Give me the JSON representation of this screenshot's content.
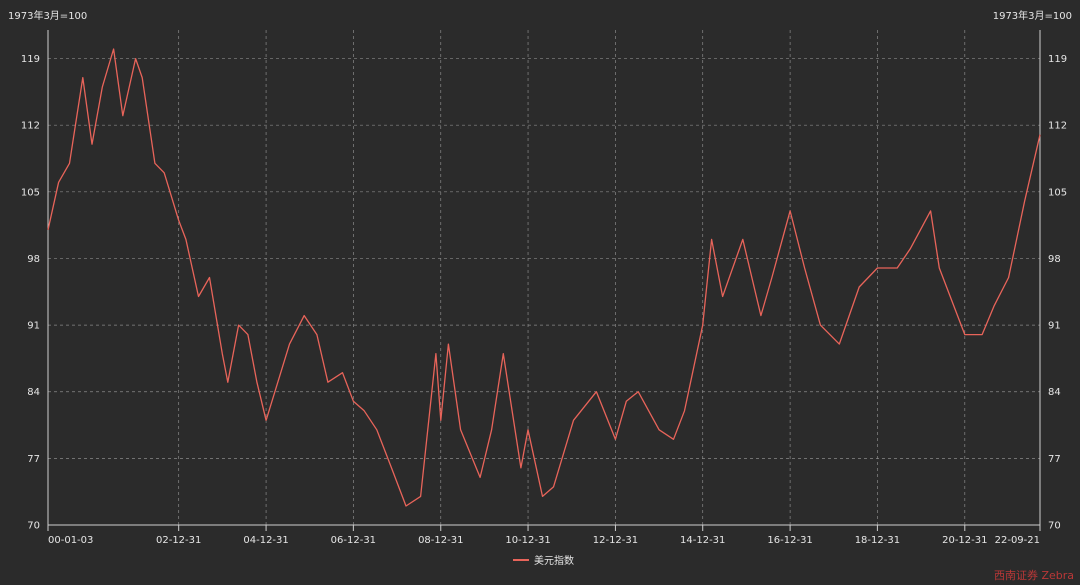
{
  "colors": {
    "background": "#2b2b2b",
    "line": "#e8645a",
    "grid": "#8a8a8a",
    "axis": "#cfcfcf",
    "text": "#e6e6e6"
  },
  "watermark": "西南证券 Zebra",
  "chart_data": {
    "type": "line",
    "unit_label_left": "1973年3月=100",
    "unit_label_right": "1973年3月=100",
    "x_tick_labels": [
      "00-01-03",
      "02-12-31",
      "04-12-31",
      "06-12-31",
      "08-12-31",
      "10-12-31",
      "12-12-31",
      "14-12-31",
      "16-12-31",
      "18-12-31",
      "20-12-31",
      "22-09-21"
    ],
    "x_ticks": [
      "2000-01-03",
      "2002-12-31",
      "2004-12-31",
      "2006-12-31",
      "2008-12-31",
      "2010-12-31",
      "2012-12-31",
      "2014-12-31",
      "2016-12-31",
      "2018-12-31",
      "2020-12-31",
      "2022-09-21"
    ],
    "ylim": [
      70,
      122
    ],
    "y_ticks": [
      70,
      77,
      84,
      91,
      98,
      105,
      112,
      119
    ],
    "grid": true,
    "legend_position": "bottom-center",
    "series": [
      {
        "name": "美元指数",
        "points": [
          [
            "2000-01-03",
            101
          ],
          [
            "2000-04-01",
            106
          ],
          [
            "2000-07-01",
            108
          ],
          [
            "2000-10-20",
            117
          ],
          [
            "2001-01-05",
            110
          ],
          [
            "2001-04-01",
            116
          ],
          [
            "2001-07-05",
            120
          ],
          [
            "2001-09-20",
            113
          ],
          [
            "2002-01-05",
            119
          ],
          [
            "2002-03-01",
            117
          ],
          [
            "2002-06-15",
            108
          ],
          [
            "2002-09-01",
            107
          ],
          [
            "2002-12-31",
            102
          ],
          [
            "2003-03-01",
            100
          ],
          [
            "2003-06-15",
            94
          ],
          [
            "2003-09-15",
            96
          ],
          [
            "2003-12-31",
            88
          ],
          [
            "2004-02-15",
            85
          ],
          [
            "2004-05-15",
            91
          ],
          [
            "2004-08-01",
            90
          ],
          [
            "2004-10-15",
            85
          ],
          [
            "2004-12-31",
            81
          ],
          [
            "2005-03-15",
            84
          ],
          [
            "2005-07-15",
            89
          ],
          [
            "2005-11-15",
            92
          ],
          [
            "2006-03-01",
            90
          ],
          [
            "2006-06-01",
            85
          ],
          [
            "2006-10-01",
            86
          ],
          [
            "2006-12-31",
            83
          ],
          [
            "2007-04-01",
            82
          ],
          [
            "2007-07-15",
            80
          ],
          [
            "2007-11-15",
            76
          ],
          [
            "2008-03-15",
            72
          ],
          [
            "2008-07-15",
            73
          ],
          [
            "2008-11-20",
            88
          ],
          [
            "2008-12-31",
            81
          ],
          [
            "2009-03-05",
            89
          ],
          [
            "2009-06-15",
            80
          ],
          [
            "2009-11-25",
            75
          ],
          [
            "2010-03-01",
            80
          ],
          [
            "2010-06-07",
            88
          ],
          [
            "2010-11-01",
            76
          ],
          [
            "2010-12-31",
            80
          ],
          [
            "2011-05-01",
            73
          ],
          [
            "2011-08-01",
            74
          ],
          [
            "2012-01-15",
            81
          ],
          [
            "2012-07-25",
            84
          ],
          [
            "2012-12-31",
            79
          ],
          [
            "2013-04-01",
            83
          ],
          [
            "2013-07-09",
            84
          ],
          [
            "2013-12-31",
            80
          ],
          [
            "2014-05-01",
            79
          ],
          [
            "2014-08-01",
            82
          ],
          [
            "2014-12-31",
            91
          ],
          [
            "2015-03-15",
            100
          ],
          [
            "2015-06-15",
            94
          ],
          [
            "2015-12-01",
            100
          ],
          [
            "2016-05-01",
            92
          ],
          [
            "2016-08-01",
            96
          ],
          [
            "2016-12-31",
            103
          ],
          [
            "2017-05-01",
            97
          ],
          [
            "2017-09-10",
            91
          ],
          [
            "2018-02-15",
            89
          ],
          [
            "2018-08-01",
            95
          ],
          [
            "2018-12-31",
            97
          ],
          [
            "2019-06-15",
            97
          ],
          [
            "2019-10-01",
            99
          ],
          [
            "2020-03-20",
            103
          ],
          [
            "2020-06-01",
            97
          ],
          [
            "2020-12-31",
            90
          ],
          [
            "2021-05-25",
            90
          ],
          [
            "2021-09-01",
            93
          ],
          [
            "2022-01-01",
            96
          ],
          [
            "2022-05-15",
            104
          ],
          [
            "2022-09-21",
            111
          ]
        ]
      }
    ]
  }
}
